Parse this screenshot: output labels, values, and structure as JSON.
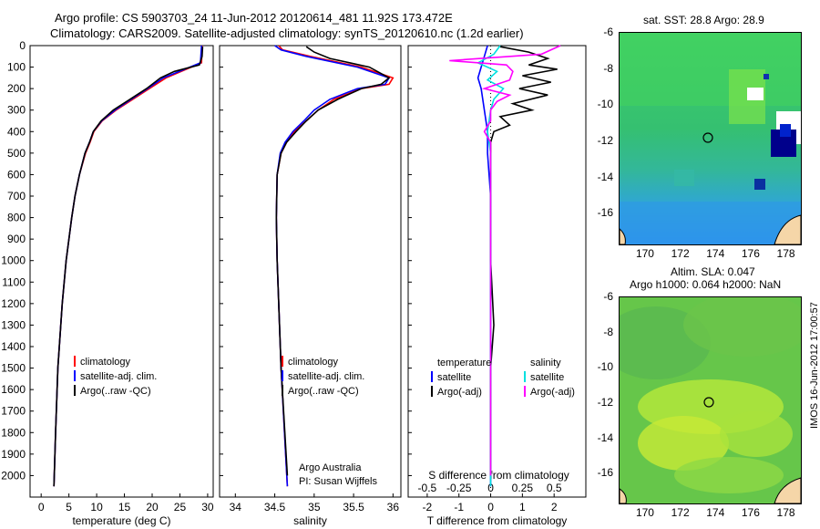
{
  "header": {
    "title_line1": "Argo profile: CS 5903703_24 11-Jun-2012 20120614_481 11.92S 173.472E",
    "title_line2": "Climatology: CARS2009. Satellite-adjusted climatology: synTS_20120610.nc (1.2d earlier)"
  },
  "colors": {
    "climatology": "#ff0000",
    "satellite": "#0000ff",
    "argo": "#000000",
    "salinity_satellite": "#00e0e0",
    "salinity_argo": "#ff00ff"
  },
  "chart_data": [
    {
      "type": "line",
      "name": "temperature",
      "xlabel": "temperature (deg C)",
      "ylabel": "",
      "xlim": [
        -2,
        31
      ],
      "ylim": [
        2100,
        0
      ],
      "xticks": [
        "0",
        "5",
        "10",
        "15",
        "20",
        "25",
        "30"
      ],
      "yticks": [
        "0",
        "100",
        "200",
        "300",
        "400",
        "500",
        "600",
        "700",
        "800",
        "900",
        "1000",
        "1100",
        "1200",
        "1300",
        "1400",
        "1500",
        "1600",
        "1700",
        "1800",
        "1900",
        "2000"
      ],
      "legend": [
        "climatology",
        "satellite-adj. clim.",
        "Argo(..raw -QC)"
      ],
      "legend_position": "bottom-right",
      "series": [
        {
          "name": "climatology",
          "depth": [
            0,
            80,
            150,
            200,
            250,
            300,
            350,
            400,
            450,
            500,
            600,
            700,
            800,
            1000,
            1200,
            1500,
            1800,
            2050
          ],
          "values": [
            29.0,
            28.9,
            22.5,
            19.5,
            16.5,
            13.5,
            11.0,
            9.5,
            8.8,
            8.0,
            6.9,
            6.1,
            5.5,
            4.5,
            3.8,
            3.0,
            2.6,
            2.3
          ]
        },
        {
          "name": "satellite-adj. clim.",
          "depth": [
            0,
            80,
            150,
            200,
            250,
            300,
            350,
            400,
            450,
            500,
            600,
            700,
            800,
            1000,
            1200,
            1500,
            1800,
            2050
          ],
          "values": [
            28.9,
            28.7,
            22.0,
            19.2,
            16.2,
            13.3,
            10.9,
            9.4,
            8.7,
            7.9,
            6.9,
            6.1,
            5.5,
            4.5,
            3.8,
            3.0,
            2.6,
            2.3
          ]
        },
        {
          "name": "Argo(..raw -QC)",
          "depth": [
            5,
            50,
            90,
            120,
            150,
            200,
            250,
            300,
            350,
            400,
            450,
            500,
            600,
            700,
            800,
            1000,
            1200,
            1500,
            1800,
            2050
          ],
          "values": [
            29.1,
            29.0,
            28.5,
            24.0,
            21.5,
            19.0,
            16.0,
            13.0,
            10.8,
            9.4,
            8.7,
            7.9,
            6.9,
            6.1,
            5.5,
            4.5,
            3.8,
            3.0,
            2.6,
            2.3
          ]
        }
      ]
    },
    {
      "type": "line",
      "name": "salinity",
      "xlabel": "salinity",
      "xlim": [
        33.8,
        36.1
      ],
      "ylim": [
        2100,
        0
      ],
      "xticks": [
        "34",
        "34.5",
        "35",
        "35.5",
        "36"
      ],
      "legend": [
        "climatology",
        "satellite-adj. clim.",
        "Argo(..raw -QC)"
      ],
      "legend_position": "bottom-right",
      "annotation": [
        "Argo Australia",
        "PI: Susan Wijffels"
      ],
      "series": [
        {
          "name": "climatology",
          "depth": [
            0,
            20,
            50,
            100,
            150,
            180,
            200,
            250,
            300,
            350,
            400,
            450,
            500,
            600,
            800,
            1000,
            1500,
            2050
          ],
          "values": [
            34.55,
            34.6,
            34.95,
            35.6,
            36.0,
            35.95,
            35.6,
            35.25,
            35.05,
            34.9,
            34.75,
            34.65,
            34.58,
            34.53,
            34.52,
            34.53,
            34.58,
            34.66
          ]
        },
        {
          "name": "satellite-adj. clim.",
          "depth": [
            0,
            20,
            50,
            100,
            150,
            180,
            200,
            250,
            300,
            350,
            400,
            450,
            500,
            600,
            800,
            1000,
            1500,
            2050
          ],
          "values": [
            34.5,
            34.58,
            34.9,
            35.55,
            35.95,
            35.9,
            35.55,
            35.2,
            35.0,
            34.87,
            34.73,
            34.63,
            34.57,
            34.53,
            34.52,
            34.53,
            34.58,
            34.66
          ]
        },
        {
          "name": "Argo(..raw -QC)",
          "depth": [
            5,
            30,
            60,
            100,
            150,
            180,
            200,
            250,
            300,
            350,
            400,
            450,
            500,
            600,
            800,
            1000,
            1500,
            2000
          ],
          "values": [
            34.9,
            35.0,
            35.2,
            35.7,
            35.95,
            35.85,
            35.6,
            35.3,
            35.05,
            34.9,
            34.77,
            34.65,
            34.58,
            34.53,
            34.52,
            34.53,
            34.58,
            34.66
          ]
        }
      ]
    },
    {
      "type": "line",
      "name": "difference",
      "xlabel": "T difference from climatology",
      "xlabel_top": "S difference from climatology",
      "xlim": [
        -2.6,
        3.0
      ],
      "ylim": [
        2100,
        0
      ],
      "xticks": [
        "-2",
        "-1",
        "0",
        "1",
        "2"
      ],
      "xticks_s": [
        "-0.5",
        "-0.25",
        "0",
        "0.25",
        "0.5"
      ],
      "legend_temperature": [
        "temperature",
        "satellite",
        "Argo(-adj)"
      ],
      "legend_salinity": [
        "salinity",
        "satellite",
        "Argo(-adj)"
      ],
      "legend_position": "bottom",
      "series": [
        {
          "name": "temperature satellite",
          "depth": [
            0,
            50,
            100,
            150,
            200,
            300,
            400,
            500,
            700,
            1000,
            1500,
            2050
          ],
          "values": [
            -0.1,
            -0.2,
            -0.3,
            -0.4,
            -0.3,
            -0.2,
            -0.1,
            -0.1,
            0,
            0,
            0,
            0
          ]
        },
        {
          "name": "temperature Argo(-adj)",
          "depth": [
            5,
            30,
            60,
            90,
            110,
            140,
            170,
            200,
            230,
            270,
            300,
            330,
            370,
            400,
            450,
            500,
            600,
            800,
            1000,
            1300,
            1500,
            2000
          ],
          "values": [
            0.3,
            1.2,
            1.8,
            1.2,
            2.1,
            1.0,
            1.9,
            0.9,
            1.8,
            0.7,
            1.3,
            0.3,
            0.6,
            0.1,
            0.0,
            0.0,
            0.0,
            0.0,
            0.0,
            0.1,
            0.0,
            0.0
          ]
        },
        {
          "name": "salinity satellite",
          "depth": [
            0,
            40,
            80,
            120,
            160,
            200,
            250,
            300,
            400,
            500,
            700,
            1000,
            1500,
            2050
          ],
          "values": [
            0.3,
            0.1,
            -0.4,
            0.2,
            -0.1,
            0.4,
            0.1,
            0.0,
            -0.1,
            0.0,
            0.0,
            0.0,
            0.0,
            0.0
          ]
        },
        {
          "name": "salinity Argo(-adj)",
          "depth": [
            0,
            40,
            70,
            90,
            120,
            160,
            200,
            230,
            260,
            300,
            350,
            400,
            450,
            500,
            700,
            1000,
            2000
          ],
          "values": [
            2.2,
            1.6,
            -1.3,
            0.5,
            0.7,
            0.6,
            -0.2,
            0.6,
            0.2,
            0.0,
            0.0,
            -0.2,
            0.0,
            0.0,
            0.0,
            0.0,
            0.0
          ]
        }
      ]
    }
  ],
  "maps": {
    "sst": {
      "title": "sat. SST: 28.8 Argo: 28.9",
      "yticks": [
        "-6",
        "-8",
        "-10",
        "-12",
        "-14",
        "-16"
      ],
      "xticks": [
        "170",
        "172",
        "174",
        "176",
        "178"
      ],
      "marker": {
        "lon": 173.47,
        "lat": -11.92
      }
    },
    "sla": {
      "title_line1": "Altim. SLA: 0.047",
      "title_line2": "Argo h1000: 0.064 h2000: NaN",
      "yticks": [
        "-6",
        "-8",
        "-10",
        "-12",
        "-14",
        "-16"
      ],
      "xticks": [
        "170",
        "172",
        "174",
        "176",
        "178"
      ],
      "marker": {
        "lon": 173.47,
        "lat": -11.92
      }
    }
  },
  "footer": {
    "imos_stamp": "IMOS 16-Jun-2012 17:00:57"
  }
}
